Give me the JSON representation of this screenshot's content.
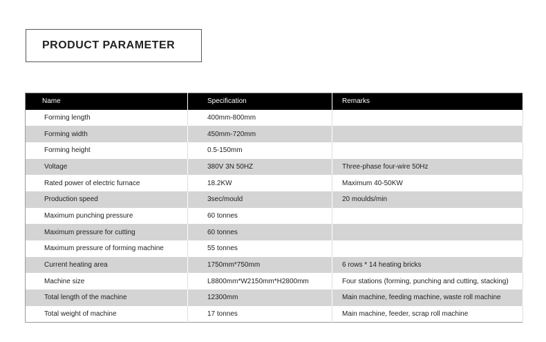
{
  "title": "PRODUCT PARAMETER",
  "table": {
    "headers": [
      "Name",
      "Specification",
      "Remarks"
    ],
    "rows": [
      [
        "Forming length",
        "400mm-800mm",
        ""
      ],
      [
        "Forming width",
        "450mm-720mm",
        ""
      ],
      [
        "Forming height",
        "0.5-150mm",
        ""
      ],
      [
        "Voltage",
        " 380V 3N 50HZ",
        "Three-phase four-wire 50Hz"
      ],
      [
        "Rated power of electric furnace",
        "18.2KW",
        "Maximum 40-50KW"
      ],
      [
        "Production speed",
        "3sec/mould",
        "20 moulds/min"
      ],
      [
        "Maximum punching pressure",
        "60 tonnes",
        ""
      ],
      [
        "Maximum pressure for cutting",
        "60 tonnes",
        ""
      ],
      [
        "Maximum pressure of forming machine",
        "55 tonnes",
        ""
      ],
      [
        "Current heating area",
        "1750mm*750mm",
        "6 rows * 14 heating bricks"
      ],
      [
        "Machine size",
        "L8800mm*W2150mm*H2800mm",
        "Four stations (forming, punching and cutting, stacking)"
      ],
      [
        "Total length of the machine",
        "12300mm",
        "Main machine, feeding machine, waste roll machine"
      ],
      [
        "Total weight of machine",
        "17 tonnes",
        "Main machine, feeder, scrap roll machine"
      ]
    ]
  },
  "colors": {
    "header_bg": "#000000",
    "stripe": "#d4d4d4"
  }
}
